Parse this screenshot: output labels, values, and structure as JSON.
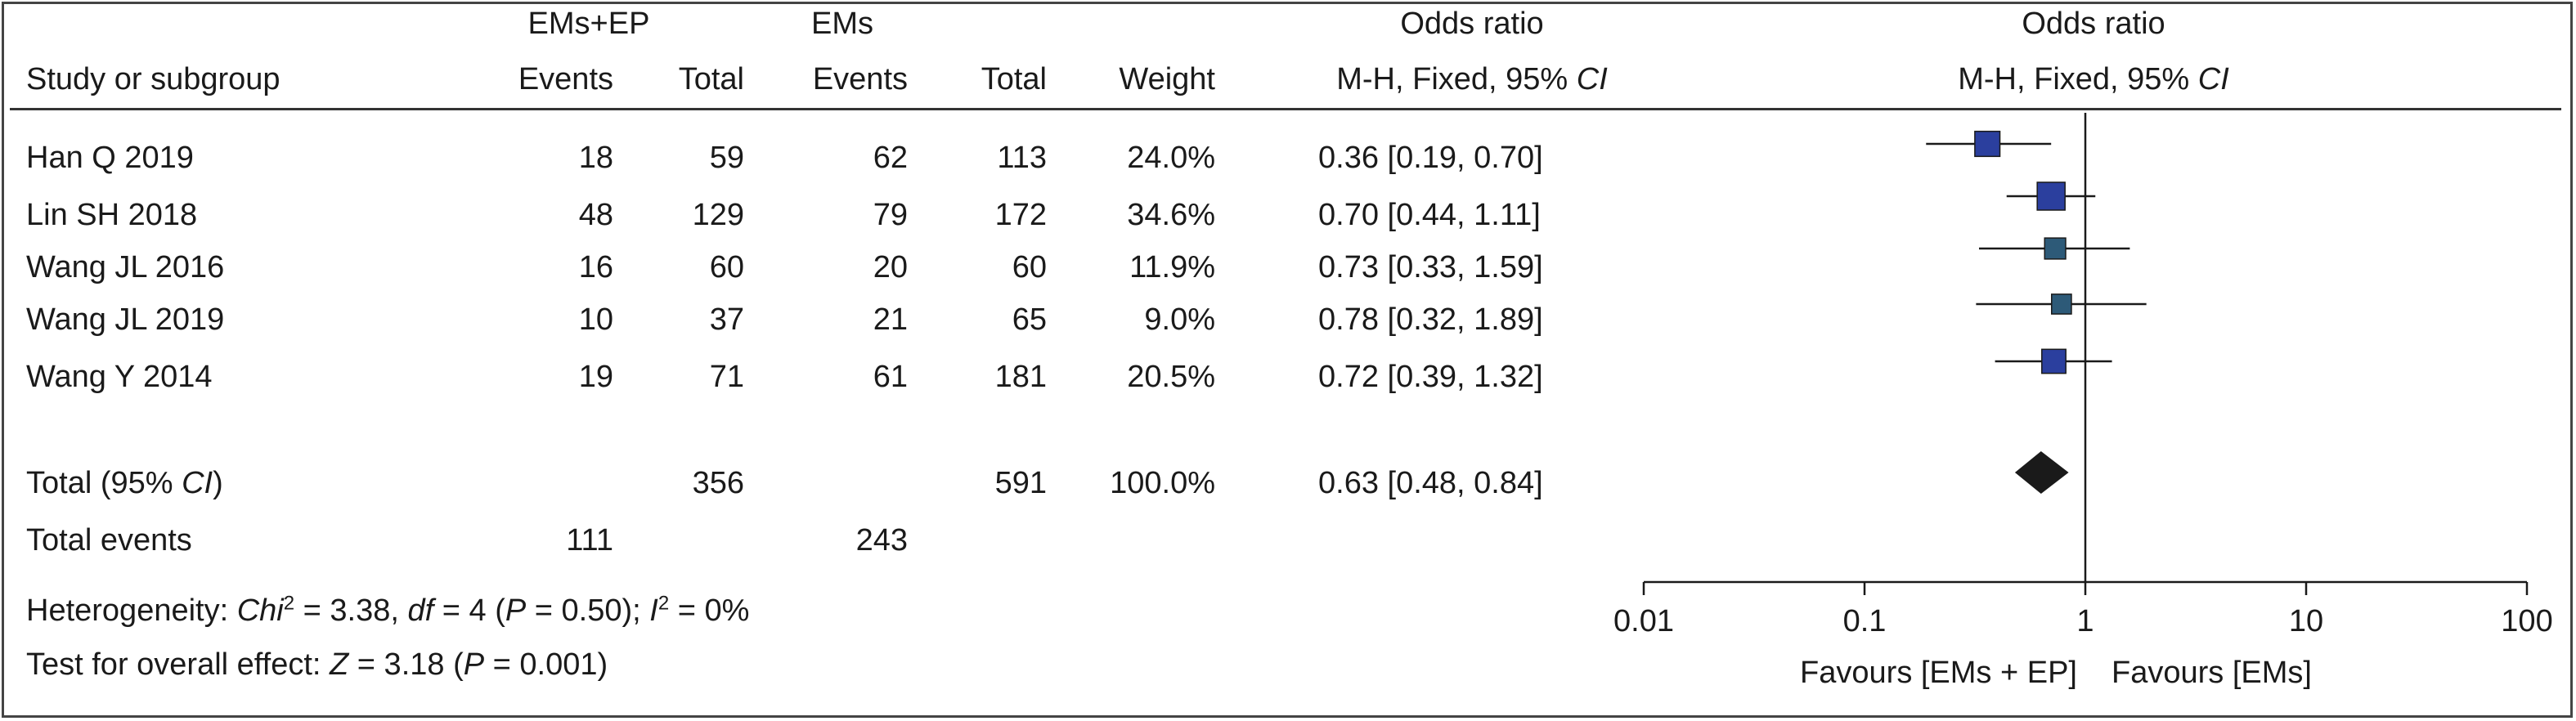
{
  "header": {
    "group1": "EMs+EP",
    "group2": "EMs",
    "or_title_left": "Odds ratio",
    "or_title_right": "Odds ratio",
    "study_col": "Study or subgroup",
    "events1": "Events",
    "total1": "Total",
    "events2": "Events",
    "total2": "Total",
    "weight": "Weight",
    "method_left_prefix": "M-H, Fixed, 95%",
    "method_left_ci": "CI",
    "method_right_prefix": "M-H, Fixed, 95%",
    "method_right_ci": "CI"
  },
  "studies": [
    {
      "name": "Han Q 2019",
      "events1": "18",
      "total1": "59",
      "events2": "62",
      "total2": "113",
      "weight": "24.0%",
      "or_text": "0.36 [0.19, 0.70]"
    },
    {
      "name": "Lin SH 2018",
      "events1": "48",
      "total1": "129",
      "events2": "79",
      "total2": "172",
      "weight": "34.6%",
      "or_text": "0.70 [0.44, 1.11]"
    },
    {
      "name": "Wang JL 2016",
      "events1": "16",
      "total1": "60",
      "events2": "20",
      "total2": "60",
      "weight": "11.9%",
      "or_text": "0.73 [0.33, 1.59]"
    },
    {
      "name": "Wang JL 2019",
      "events1": "10",
      "total1": "37",
      "events2": "21",
      "total2": "65",
      "weight": "9.0%",
      "or_text": "0.78 [0.32, 1.89]"
    },
    {
      "name": "Wang Y 2014",
      "events1": "19",
      "total1": "71",
      "events2": "61",
      "total2": "181",
      "weight": "20.5%",
      "or_text": "0.72 [0.39, 1.32]"
    }
  ],
  "total": {
    "label_prefix": "Total (95%",
    "label_ci": "CI",
    "label_suffix": ")",
    "total1": "356",
    "total2": "591",
    "weight": "100.0%",
    "or_text": "0.63 [0.48, 0.84]"
  },
  "total_events": {
    "label": "Total events",
    "events1": "111",
    "events2": "243"
  },
  "heterogeneity": {
    "prefix": "Heterogeneity: ",
    "chi": "Chi",
    "chi_sup": "2",
    "chi_rest": " = 3.38, ",
    "df": "df",
    "df_rest": " = 4 (",
    "p": "P",
    "p_rest": " = 0.50); ",
    "i": "I",
    "i_sup": "2",
    "i_rest": " = 0%"
  },
  "overall_effect": {
    "prefix": "Test for overall effect: ",
    "z": "Z",
    "z_rest": " = 3.18 (",
    "p": "P",
    "p_rest": " = 0.001)"
  },
  "favours_left": "Favours [EMs + EP]",
  "favours_right": "Favours [EMs]",
  "colors": {
    "square": "#2b3f9e",
    "square_alt": "#2d5a78",
    "diamond": "#1a1a1a",
    "line": "#1a1a1a"
  },
  "chart_data": {
    "type": "scatter",
    "subtype": "forest-plot",
    "scale": "log",
    "xlim": [
      0.01,
      100
    ],
    "ticks": [
      "0.01",
      "0.1",
      "1",
      "10",
      "100"
    ],
    "reference_line": 1,
    "studies": [
      {
        "name": "Han Q 2019",
        "or": 0.36,
        "lo": 0.19,
        "hi": 0.7,
        "weight": 24.0
      },
      {
        "name": "Lin SH 2018",
        "or": 0.7,
        "lo": 0.44,
        "hi": 1.11,
        "weight": 34.6
      },
      {
        "name": "Wang JL 2016",
        "or": 0.73,
        "lo": 0.33,
        "hi": 1.59,
        "weight": 11.9
      },
      {
        "name": "Wang JL 2019",
        "or": 0.78,
        "lo": 0.32,
        "hi": 1.89,
        "weight": 9.0
      },
      {
        "name": "Wang Y 2014",
        "or": 0.72,
        "lo": 0.39,
        "hi": 1.32,
        "weight": 20.5
      }
    ],
    "pooled": {
      "name": "Total (95% CI)",
      "or": 0.63,
      "lo": 0.48,
      "hi": 0.84
    }
  }
}
